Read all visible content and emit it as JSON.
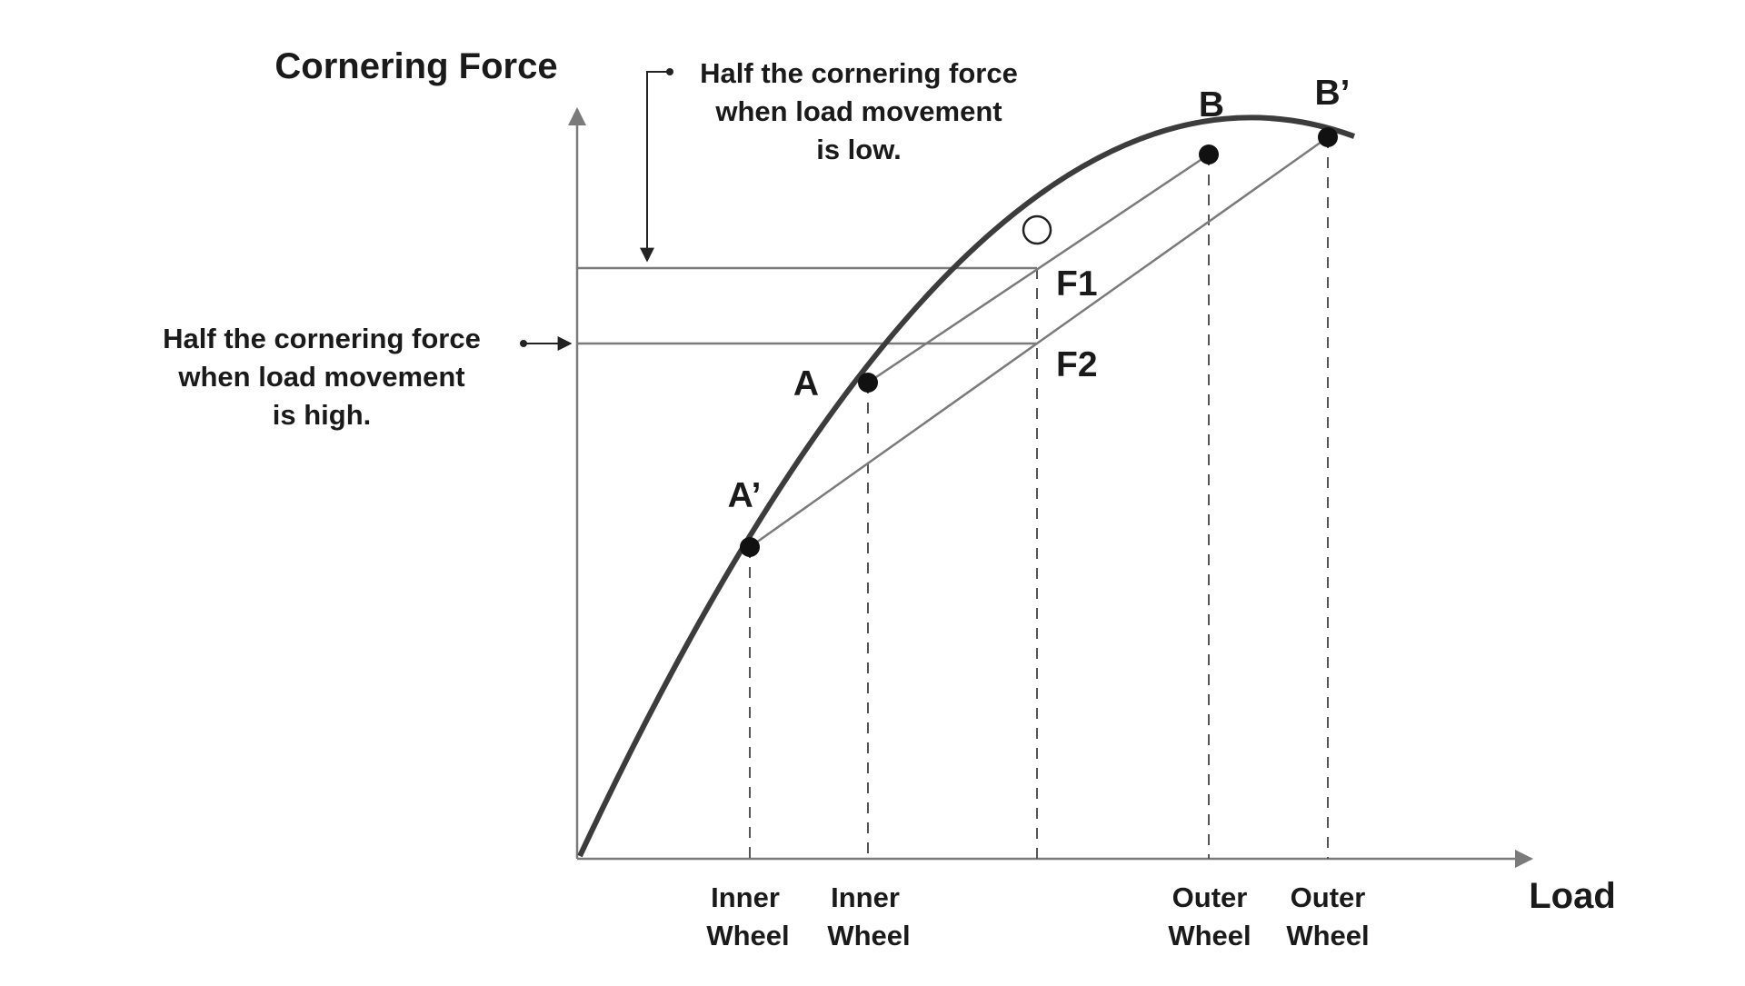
{
  "colors": {
    "curve": "#3c3c3c",
    "axis": "#7a7a7a",
    "line": "#7a7a7a",
    "text": "#1a1a1a",
    "point": "#111111"
  },
  "axes": {
    "y_title": "Cornering Force",
    "x_title": "Load"
  },
  "annotations": {
    "low": [
      "Half the cornering force",
      "when load movement",
      "is low."
    ],
    "high": [
      "Half the cornering force",
      "when load movement",
      "is high."
    ]
  },
  "points": {
    "A_prime": "A’",
    "A": "A",
    "B": "B",
    "B_prime": "B’"
  },
  "force_labels": {
    "f1": "F1",
    "f2": "F2"
  },
  "wheel_labels": [
    {
      "line1": "Inner",
      "line2": "Wheel"
    },
    {
      "line1": "Inner",
      "line2": "Wheel"
    },
    {
      "line1": "Outer",
      "line2": "Wheel"
    },
    {
      "line1": "Outer",
      "line2": "Wheel"
    }
  ]
}
